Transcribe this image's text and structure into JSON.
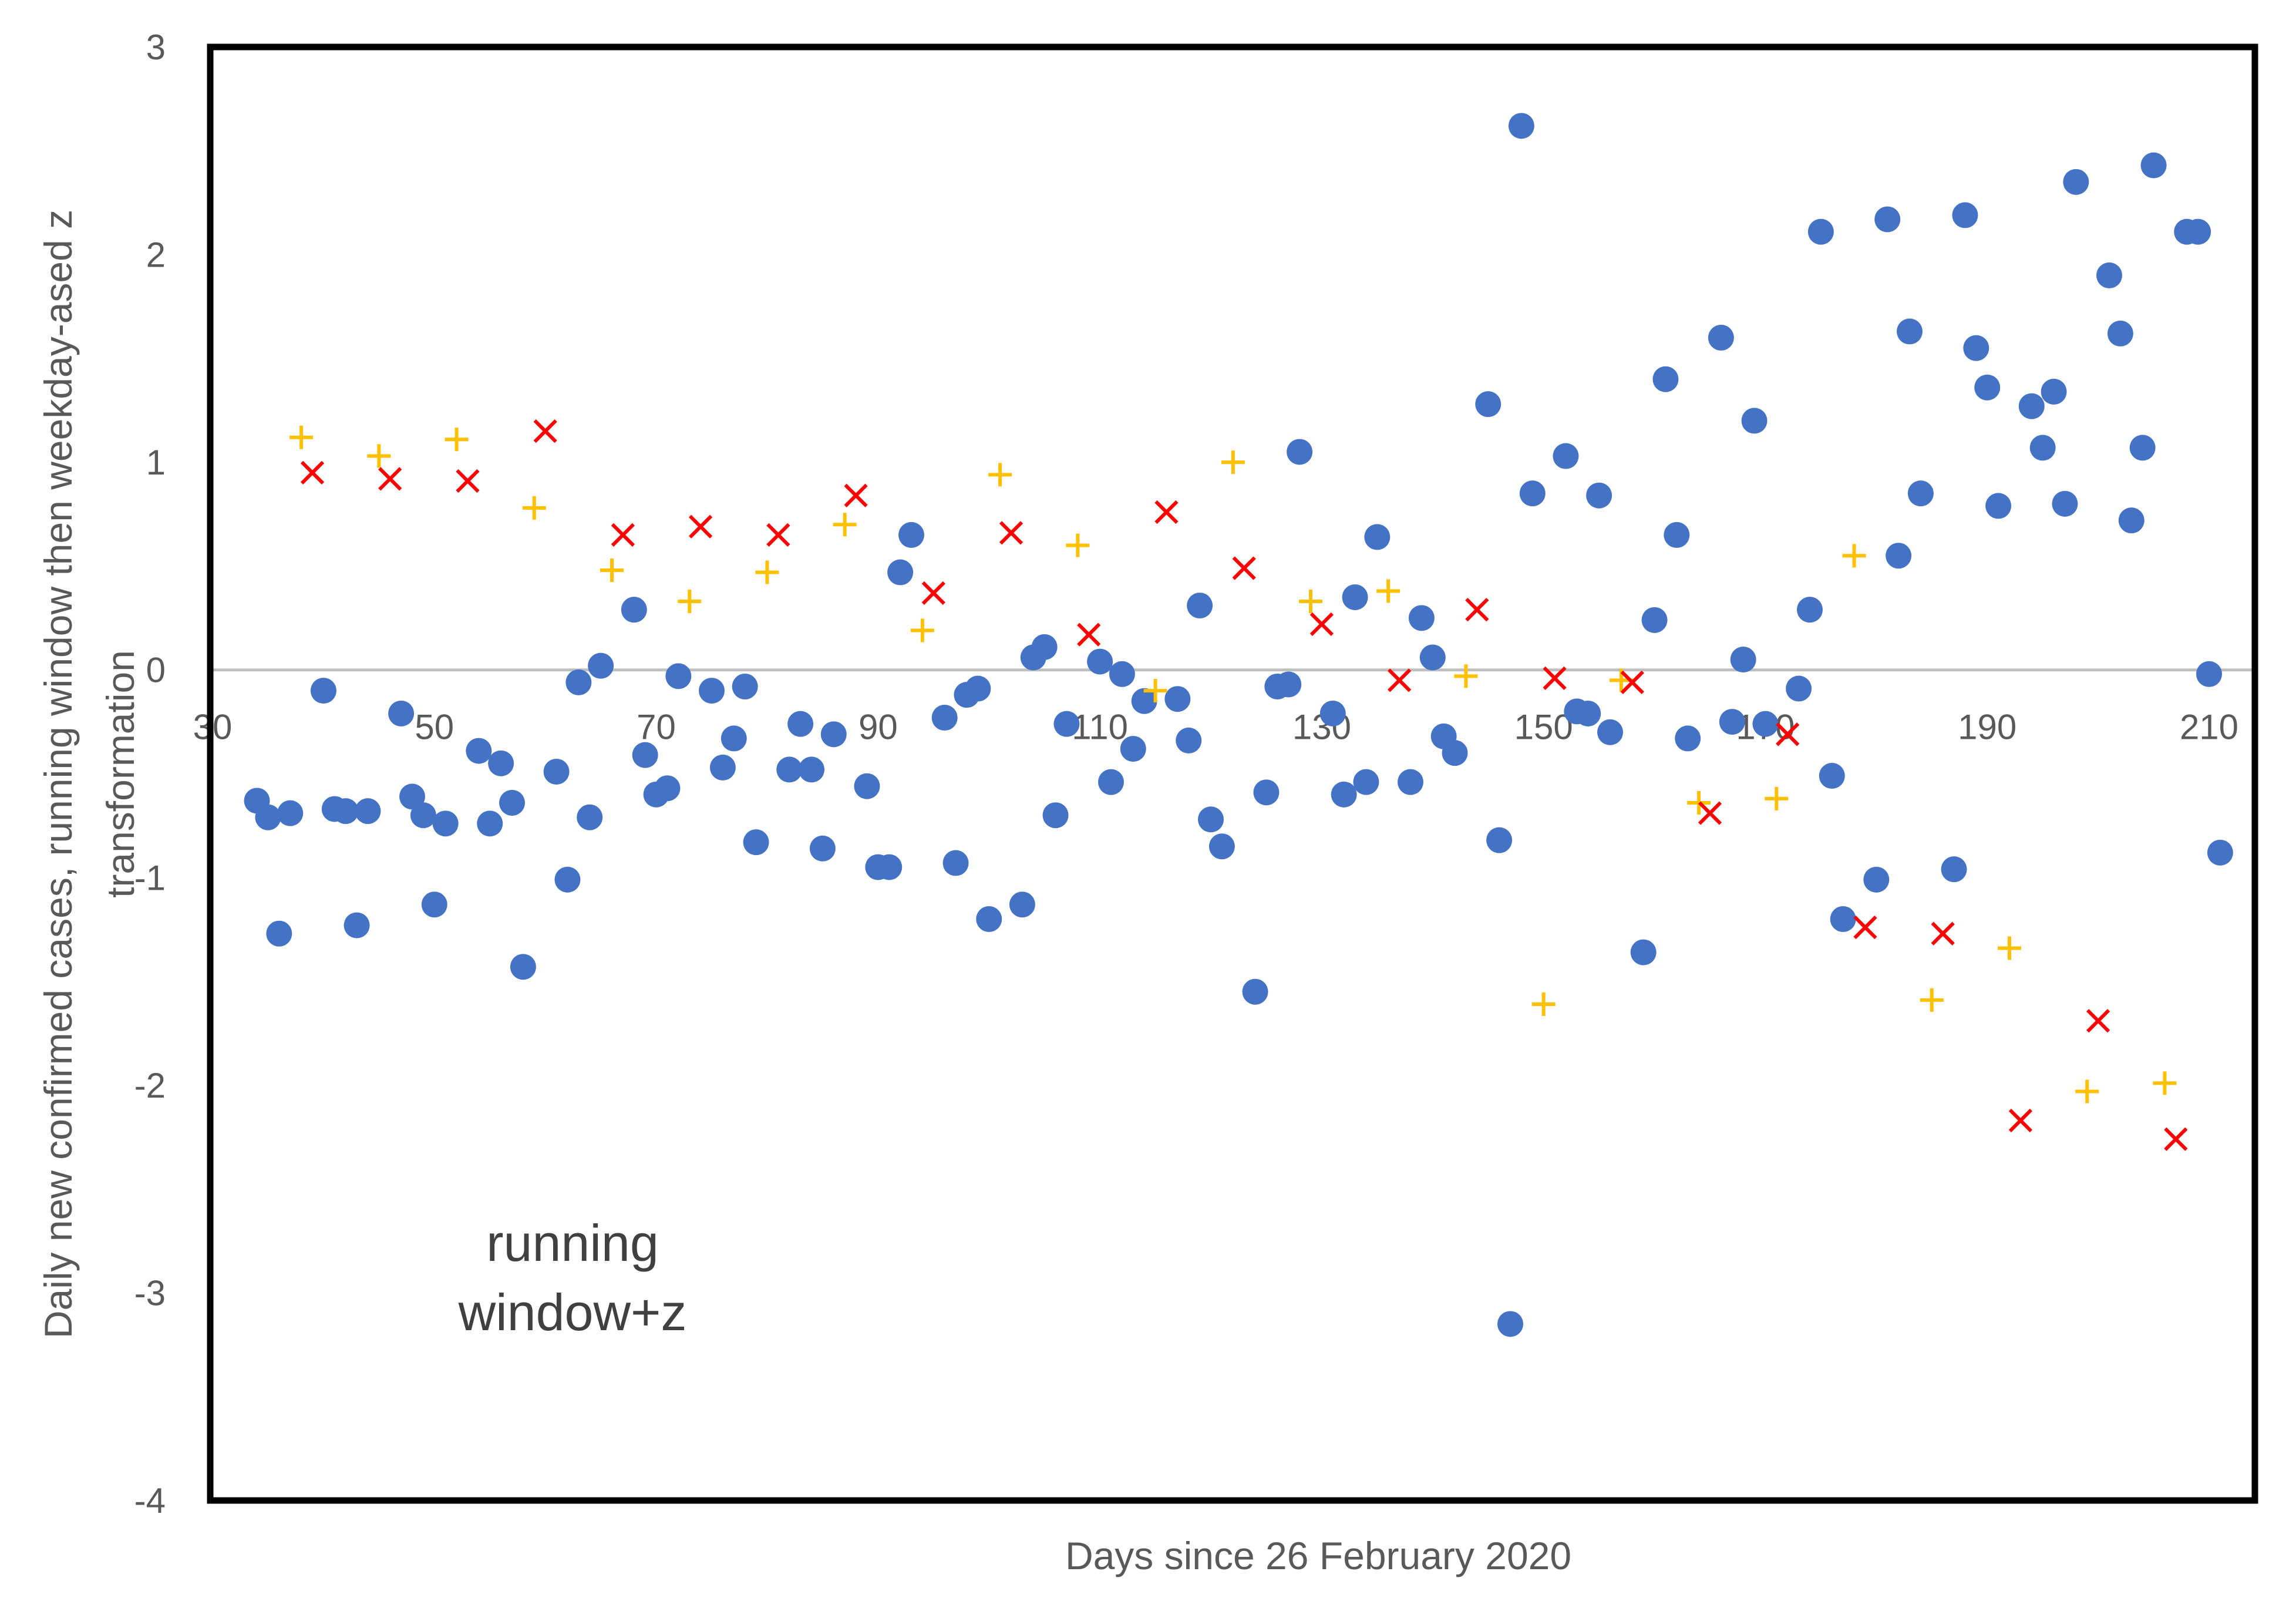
{
  "chart_data": {
    "type": "scatter",
    "title": "",
    "xlabel": "Days since 26 February 2020",
    "ylabel": "Daily new confirmed cases, running window then weekday-ased z transformation",
    "xlim": [
      30,
      210
    ],
    "ylim": [
      -4,
      3
    ],
    "x_ticks": [
      30,
      50,
      70,
      90,
      110,
      130,
      150,
      170,
      190,
      210
    ],
    "y_ticks": [
      3,
      2,
      1,
      0,
      -1,
      -2,
      -3,
      -4
    ],
    "grid": false,
    "zero_line": true,
    "annotation": [
      "running",
      "window+z"
    ],
    "series": [
      {
        "marker": "circle",
        "color": "#4472C4",
        "points": [
          [
            34,
            -0.63
          ],
          [
            35,
            -0.71
          ],
          [
            36,
            -1.27
          ],
          [
            37,
            -0.69
          ],
          [
            40,
            -0.1
          ],
          [
            41,
            -0.67
          ],
          [
            42,
            -0.68
          ],
          [
            43,
            -1.23
          ],
          [
            44,
            -0.68
          ],
          [
            47,
            -0.21
          ],
          [
            48,
            -0.61
          ],
          [
            49,
            -0.7
          ],
          [
            50,
            -1.13
          ],
          [
            51,
            -0.74
          ],
          [
            54,
            -0.39
          ],
          [
            55,
            -0.74
          ],
          [
            56,
            -0.45
          ],
          [
            57,
            -0.64
          ],
          [
            58,
            -1.43
          ],
          [
            61,
            -0.49
          ],
          [
            62,
            -1.01
          ],
          [
            63,
            -0.06
          ],
          [
            64,
            -0.71
          ],
          [
            65,
            0.02
          ],
          [
            68,
            0.29
          ],
          [
            69,
            -0.41
          ],
          [
            70,
            -0.6
          ],
          [
            71,
            -0.57
          ],
          [
            72,
            -0.03
          ],
          [
            75,
            -0.1
          ],
          [
            76,
            -0.47
          ],
          [
            77,
            -0.33
          ],
          [
            78,
            -0.08
          ],
          [
            79,
            -0.83
          ],
          [
            82,
            -0.48
          ],
          [
            83,
            -0.26
          ],
          [
            84,
            -0.48
          ],
          [
            85,
            -0.86
          ],
          [
            86,
            -0.31
          ],
          [
            89,
            -0.56
          ],
          [
            90,
            -0.95
          ],
          [
            91,
            -0.95
          ],
          [
            92,
            0.47
          ],
          [
            93,
            0.65
          ],
          [
            96,
            -0.23
          ],
          [
            97,
            -0.93
          ],
          [
            98,
            -0.12
          ],
          [
            99,
            -0.09
          ],
          [
            100,
            -1.2
          ],
          [
            103,
            -1.13
          ],
          [
            104,
            0.06
          ],
          [
            105,
            0.11
          ],
          [
            106,
            -0.7
          ],
          [
            107,
            -0.26
          ],
          [
            110,
            0.04
          ],
          [
            111,
            -0.54
          ],
          [
            112,
            -0.02
          ],
          [
            113,
            -0.38
          ],
          [
            114,
            -0.15
          ],
          [
            117,
            -0.14
          ],
          [
            118,
            -0.34
          ],
          [
            119,
            0.31
          ],
          [
            120,
            -0.72
          ],
          [
            121,
            -0.85
          ],
          [
            124,
            -1.55
          ],
          [
            125,
            -0.59
          ],
          [
            126,
            -0.08
          ],
          [
            127,
            -0.07
          ],
          [
            128,
            1.05
          ],
          [
            131,
            -0.21
          ],
          [
            132,
            -0.6
          ],
          [
            133,
            0.35
          ],
          [
            134,
            -0.54
          ],
          [
            135,
            0.64
          ],
          [
            138,
            -0.54
          ],
          [
            139,
            0.25
          ],
          [
            140,
            0.06
          ],
          [
            141,
            -0.32
          ],
          [
            142,
            -0.4
          ],
          [
            145,
            1.28
          ],
          [
            146,
            -0.82
          ],
          [
            147,
            -3.15
          ],
          [
            148,
            2.62
          ],
          [
            149,
            0.85
          ],
          [
            152,
            1.03
          ],
          [
            153,
            -0.2
          ],
          [
            154,
            -0.21
          ],
          [
            155,
            0.84
          ],
          [
            156,
            -0.3
          ],
          [
            159,
            -1.36
          ],
          [
            160,
            0.24
          ],
          [
            161,
            1.4
          ],
          [
            162,
            0.65
          ],
          [
            163,
            -0.33
          ],
          [
            166,
            1.6
          ],
          [
            167,
            -0.25
          ],
          [
            168,
            0.05
          ],
          [
            169,
            1.2
          ],
          [
            170,
            -0.26
          ],
          [
            173,
            -0.09
          ],
          [
            174,
            0.29
          ],
          [
            175,
            2.11
          ],
          [
            176,
            -0.51
          ],
          [
            177,
            -1.2
          ],
          [
            180,
            -1.01
          ],
          [
            181,
            2.17
          ],
          [
            182,
            0.55
          ],
          [
            183,
            1.63
          ],
          [
            184,
            0.85
          ],
          [
            187,
            -0.96
          ],
          [
            188,
            2.19
          ],
          [
            189,
            1.55
          ],
          [
            190,
            1.36
          ],
          [
            191,
            0.79
          ],
          [
            194,
            1.27
          ],
          [
            195,
            1.07
          ],
          [
            196,
            1.34
          ],
          [
            197,
            0.8
          ],
          [
            198,
            2.35
          ],
          [
            201,
            1.9
          ],
          [
            202,
            1.62
          ],
          [
            203,
            0.72
          ],
          [
            204,
            1.07
          ],
          [
            205,
            2.43
          ],
          [
            208,
            2.11
          ],
          [
            209,
            2.11
          ],
          [
            210,
            -0.02
          ],
          [
            211,
            -0.88
          ]
        ]
      },
      {
        "marker": "plus",
        "color": "#FFC000",
        "points": [
          [
            38,
            1.12
          ],
          [
            45,
            1.03
          ],
          [
            52,
            1.11
          ],
          [
            59,
            0.78
          ],
          [
            66,
            0.48
          ],
          [
            73,
            0.33
          ],
          [
            80,
            0.47
          ],
          [
            87,
            0.7
          ],
          [
            94,
            0.19
          ],
          [
            101,
            0.94
          ],
          [
            108,
            0.6
          ],
          [
            115,
            -0.1
          ],
          [
            122,
            1.0
          ],
          [
            129,
            0.33
          ],
          [
            136,
            0.38
          ],
          [
            143,
            -0.03
          ],
          [
            150,
            -1.61
          ],
          [
            157,
            -0.05
          ],
          [
            164,
            -0.64
          ],
          [
            171,
            -0.62
          ],
          [
            178,
            0.55
          ],
          [
            185,
            -1.59
          ],
          [
            192,
            -1.34
          ],
          [
            199,
            -2.03
          ],
          [
            206,
            -1.99
          ]
        ]
      },
      {
        "marker": "cross",
        "color": "#FF0000",
        "points": [
          [
            39,
            0.95
          ],
          [
            46,
            0.92
          ],
          [
            53,
            0.91
          ],
          [
            60,
            1.15
          ],
          [
            67,
            0.65
          ],
          [
            74,
            0.69
          ],
          [
            81,
            0.65
          ],
          [
            88,
            0.84
          ],
          [
            95,
            0.37
          ],
          [
            102,
            0.66
          ],
          [
            109,
            0.17
          ],
          [
            116,
            0.76
          ],
          [
            123,
            0.49
          ],
          [
            130,
            0.22
          ],
          [
            137,
            -0.05
          ],
          [
            144,
            0.29
          ],
          [
            151,
            -0.04
          ],
          [
            158,
            -0.06
          ],
          [
            165,
            -0.69
          ],
          [
            172,
            -0.31
          ],
          [
            179,
            -1.24
          ],
          [
            186,
            -1.27
          ],
          [
            193,
            -2.17
          ],
          [
            200,
            -1.69
          ],
          [
            207,
            -2.26
          ]
        ]
      }
    ]
  }
}
